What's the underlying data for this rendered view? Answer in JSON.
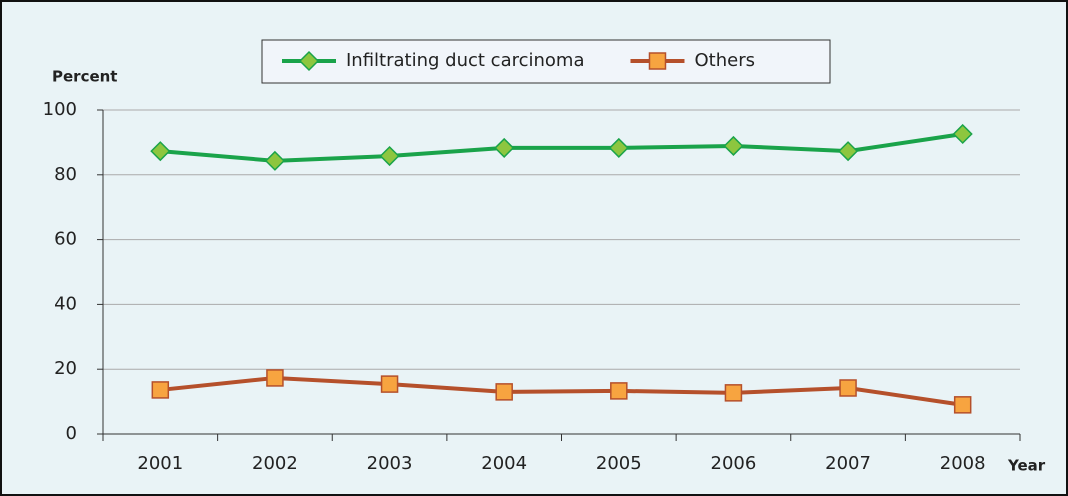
{
  "chart_data": {
    "type": "line",
    "categories": [
      "2001",
      "2002",
      "2003",
      "2004",
      "2005",
      "2006",
      "2007",
      "2008"
    ],
    "series": [
      {
        "name": "Infiltrating duct carcinoma",
        "color": "#1aa34a",
        "marker": "diamond",
        "marker_color": "#8dc63f",
        "values": [
          87.3,
          84.3,
          85.8,
          88.3,
          88.3,
          88.9,
          87.3,
          92.6
        ]
      },
      {
        "name": "Others",
        "color": "#b5502b",
        "marker": "square",
        "marker_color": "#f7a440",
        "values": [
          13.6,
          17.3,
          15.4,
          13.0,
          13.3,
          12.7,
          14.2,
          9.0
        ]
      }
    ],
    "y_label": "Percent",
    "x_label": "Year",
    "ylim": [
      0,
      100
    ],
    "yticks": [
      0,
      20,
      40,
      60,
      80,
      100
    ],
    "grid": true,
    "legend": "top"
  }
}
